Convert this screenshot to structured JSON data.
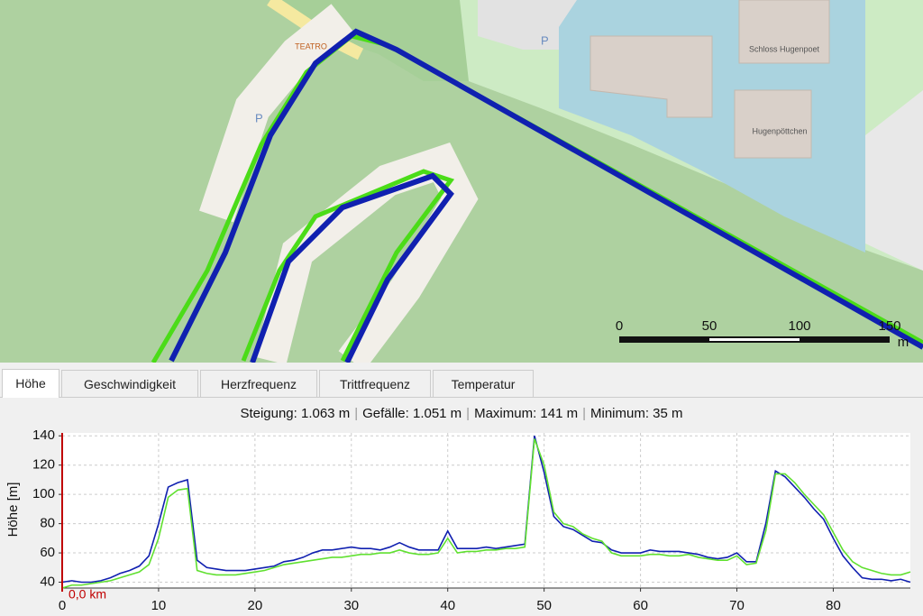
{
  "map": {
    "labels": {
      "teatro": "TEATRO",
      "parking1": "P",
      "parking2": "P",
      "castle": "Schloss Hugenpoet",
      "restaurant": "Hugenpöttchen"
    },
    "scale": {
      "labels": [
        "0",
        "50",
        "100",
        "150"
      ],
      "unit": "m"
    }
  },
  "tabs": [
    "Höhe",
    "Geschwindigkeit",
    "Herzfrequenz",
    "Trittfrequenz",
    "Temperatur"
  ],
  "stats": {
    "items": [
      "Steigung: 1.063 m",
      "Gefälle: 1.051 m",
      "Maximum: 141 m",
      "Minimum: 35 m"
    ],
    "separator": "|"
  },
  "chart_data": {
    "type": "line",
    "y_label": "Höhe [m]",
    "annotation": "0,0 km",
    "x": [
      0,
      1,
      2,
      3,
      4,
      5,
      6,
      7,
      8,
      9,
      10,
      11,
      12,
      13,
      14,
      15,
      16,
      17,
      18,
      19,
      20,
      21,
      22,
      23,
      24,
      25,
      26,
      27,
      28,
      29,
      30,
      31,
      32,
      33,
      34,
      35,
      36,
      37,
      38,
      39,
      40,
      41,
      42,
      43,
      44,
      45,
      46,
      47,
      48,
      49,
      50,
      51,
      52,
      53,
      54,
      55,
      56,
      57,
      58,
      59,
      60,
      61,
      62,
      63,
      64,
      65,
      66,
      67,
      68,
      69,
      70,
      71,
      72,
      73,
      74,
      75,
      76,
      77,
      78,
      79,
      80,
      81,
      82,
      83,
      84,
      85,
      86,
      87,
      88
    ],
    "series": [
      {
        "name": "blue",
        "color": "#1020b0",
        "values": [
          40,
          41,
          40,
          40,
          41,
          43,
          46,
          48,
          51,
          58,
          80,
          105,
          108,
          110,
          55,
          50,
          49,
          48,
          48,
          48,
          49,
          50,
          51,
          54,
          55,
          57,
          60,
          62,
          62,
          63,
          64,
          63,
          63,
          62,
          64,
          67,
          64,
          62,
          62,
          62,
          75,
          63,
          63,
          63,
          64,
          63,
          64,
          65,
          66,
          140,
          115,
          85,
          78,
          76,
          72,
          68,
          67,
          62,
          60,
          60,
          60,
          62,
          61,
          61,
          61,
          60,
          59,
          57,
          56,
          57,
          60,
          54,
          54,
          80,
          116,
          112,
          105,
          98,
          90,
          83,
          70,
          58,
          50,
          43,
          42,
          42,
          41,
          42,
          40
        ]
      },
      {
        "name": "green",
        "color": "#60e030",
        "values": [
          36,
          38,
          38,
          39,
          40,
          41,
          43,
          45,
          47,
          52,
          70,
          98,
          103,
          104,
          48,
          46,
          45,
          45,
          45,
          46,
          47,
          48,
          50,
          52,
          53,
          54,
          55,
          56,
          57,
          57,
          58,
          59,
          59,
          60,
          60,
          62,
          60,
          59,
          59,
          60,
          70,
          60,
          61,
          61,
          62,
          62,
          63,
          63,
          64,
          138,
          120,
          88,
          80,
          78,
          73,
          70,
          68,
          60,
          58,
          58,
          58,
          59,
          59,
          58,
          58,
          59,
          57,
          56,
          55,
          55,
          58,
          52,
          53,
          75,
          114,
          114,
          108,
          100,
          93,
          86,
          74,
          62,
          54,
          50,
          48,
          46,
          45,
          45,
          47
        ]
      }
    ],
    "xlim": [
      0,
      88
    ],
    "ylim": [
      36,
      142
    ],
    "xticks": [
      0,
      10,
      20,
      30,
      40,
      50,
      60,
      70,
      80
    ],
    "yticks": [
      40,
      60,
      80,
      100,
      120,
      140
    ],
    "grid": true
  }
}
